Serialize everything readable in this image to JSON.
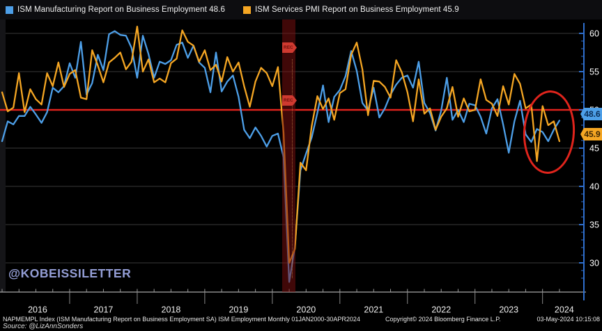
{
  "legend": {
    "items": [
      {
        "label": "ISM Manufacturing Report on Business Employment 48.6",
        "color": "#4d9fe8"
      },
      {
        "label": "ISM Services PMI Report on Business Employment 45.9",
        "color": "#f5a623"
      }
    ]
  },
  "watermark": "@KOBEISSILETTER",
  "annotations": {
    "recession_label": "REC",
    "recession_badge_tops": [
      61,
      137
    ],
    "last_values": [
      {
        "text": "48.6",
        "series": "manufacturing"
      },
      {
        "text": "45.9",
        "series": "services"
      }
    ]
  },
  "footer": {
    "description": "NAPMEMPL Index (ISM Manufacturing Report on Business Employment SA) ISM Employment  Monthly 01JAN2000-30APR2024",
    "copyright": "Copyright© 2024 Bloomberg Finance L.P.",
    "timestamp": "03-May-2024 10:15:08",
    "source": "Source: @LizAnnSonders"
  },
  "chart_data": {
    "type": "line",
    "frequency": "monthly",
    "x_start": "2016-01",
    "x_end": "2024-04",
    "years": [
      "2016",
      "2017",
      "2018",
      "2019",
      "2020",
      "2021",
      "2022",
      "2023",
      "2024"
    ],
    "y_ticks": [
      60,
      55,
      50,
      45,
      40,
      35,
      30
    ],
    "ylim": [
      27,
      61
    ],
    "reference_line": 50,
    "grid": true,
    "legend_position": "top",
    "recession_band": {
      "start": "2020-02",
      "end": "2020-04"
    },
    "colors": {
      "manufacturing": "#4d9fe8",
      "services": "#f5a623",
      "reference": "#e0231d",
      "axis": "#2f6fce",
      "gridline": "#3a3a3a",
      "band": "#7a1010"
    },
    "series": [
      {
        "name": "ISM Manufacturing Report on Business Employment",
        "last_value": 48.6,
        "values": [
          45.9,
          48.5,
          48.1,
          49.2,
          49.2,
          50.4,
          49.4,
          48.3,
          49.7,
          52.9,
          52.3,
          53.1,
          56.1,
          54.2,
          58.9,
          52.0,
          53.5,
          57.2,
          55.2,
          59.9,
          60.3,
          59.8,
          59.7,
          58.1,
          54.2,
          59.7,
          57.3,
          54.2,
          56.3,
          56.0,
          56.5,
          58.5,
          58.8,
          56.8,
          58.4,
          56.2,
          55.5,
          52.3,
          57.5,
          52.4,
          53.7,
          54.5,
          51.7,
          47.4,
          46.3,
          47.7,
          46.6,
          45.2,
          46.6,
          46.9,
          43.8,
          27.5,
          32.1,
          42.1,
          44.3,
          46.4,
          49.6,
          53.2,
          48.4,
          51.7,
          52.6,
          54.4,
          57.7,
          55.1,
          50.9,
          49.9,
          52.9,
          49.0,
          50.2,
          52.0,
          53.3,
          54.2,
          54.5,
          52.9,
          56.3,
          50.9,
          49.6,
          47.3,
          49.9,
          54.2,
          48.7,
          50.0,
          48.4,
          50.8,
          50.6,
          49.1,
          46.9,
          50.2,
          51.4,
          48.1,
          44.4,
          48.5,
          51.2,
          46.8,
          45.8,
          47.5,
          47.1,
          45.9,
          47.4,
          48.6
        ]
      },
      {
        "name": "ISM Services PMI Report on Business Employment",
        "last_value": 45.9,
        "values": [
          52.3,
          49.8,
          50.3,
          54.8,
          49.7,
          52.7,
          51.4,
          50.7,
          54.8,
          53.1,
          56.2,
          53.0,
          54.7,
          55.2,
          51.6,
          51.4,
          57.8,
          55.8,
          53.6,
          56.2,
          56.8,
          57.5,
          55.3,
          56.3,
          60.9,
          55.0,
          56.6,
          53.6,
          54.1,
          53.6,
          56.1,
          56.7,
          60.4,
          58.9,
          58.4,
          56.3,
          57.8,
          55.2,
          55.9,
          53.7,
          56.9,
          55.0,
          56.2,
          53.1,
          50.4,
          53.7,
          55.5,
          54.8,
          53.1,
          55.6,
          47.0,
          30.0,
          31.8,
          43.1,
          42.1,
          47.9,
          51.8,
          50.1,
          51.5,
          48.7,
          52.2,
          52.7,
          57.2,
          58.8,
          55.3,
          49.3,
          53.8,
          53.7,
          53.0,
          51.6,
          56.5,
          54.9,
          52.3,
          48.5,
          54.0,
          49.5,
          50.2,
          47.4,
          49.1,
          50.2,
          53.0,
          49.1,
          51.5,
          49.8,
          50.0,
          54.0,
          51.3,
          50.8,
          49.2,
          53.1,
          50.7,
          54.7,
          53.4,
          50.2,
          50.7,
          43.3,
          50.5,
          48.0,
          48.5,
          45.9
        ]
      }
    ]
  }
}
